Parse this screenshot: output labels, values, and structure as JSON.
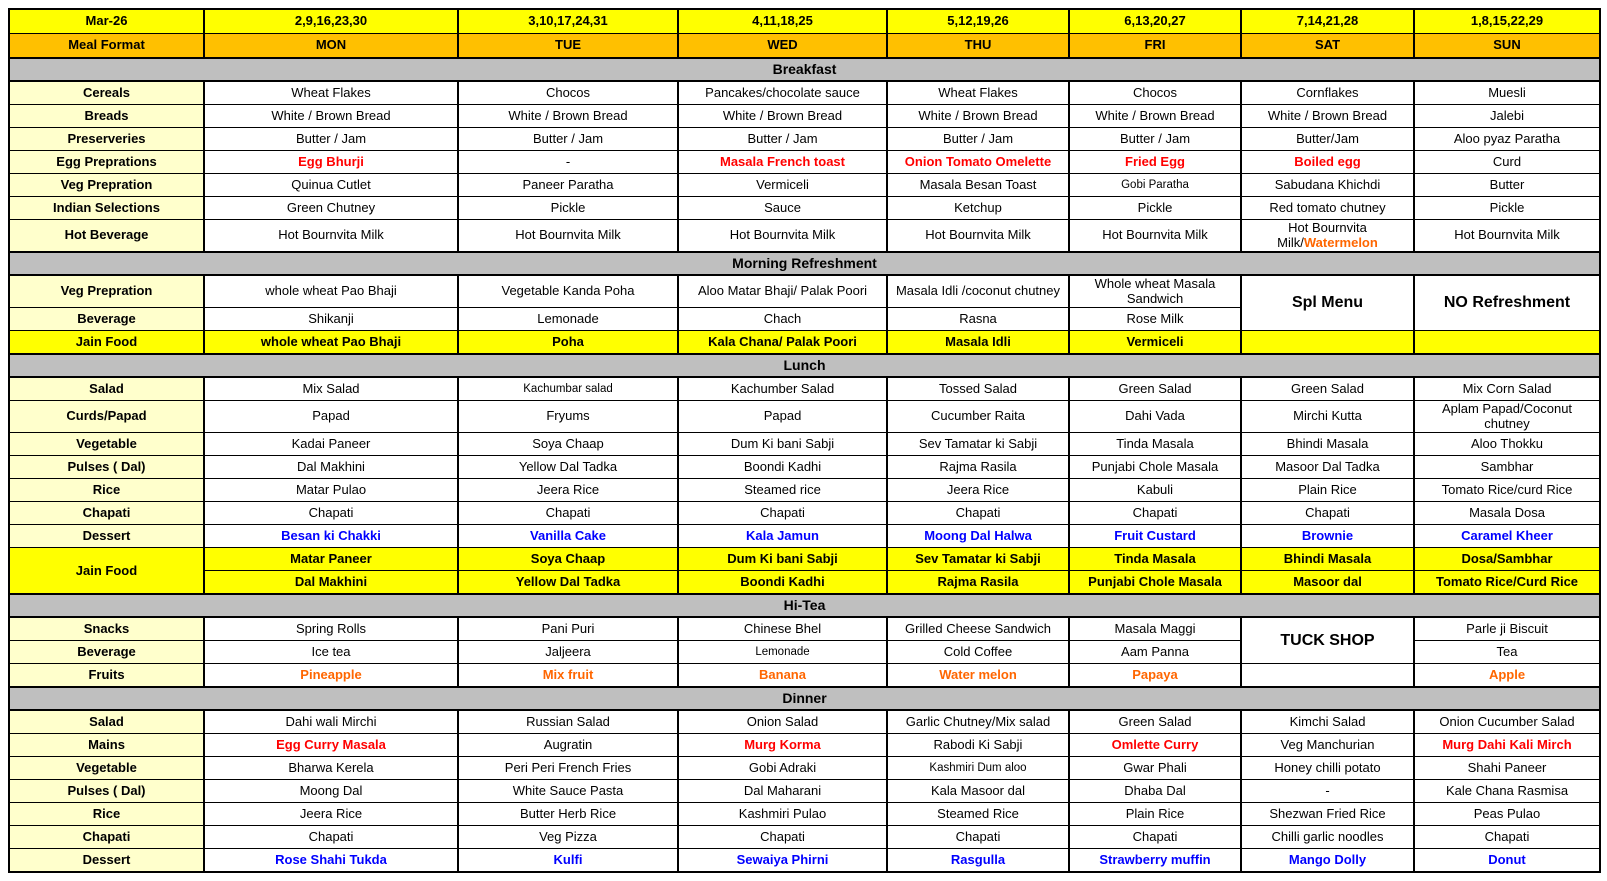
{
  "colors": {
    "header_yellow": "#FFFF00",
    "header_orange": "#FFC000",
    "section_gray": "#BFBFBF",
    "label_cream": "#FFFFCC",
    "jain_yellow": "#FFFF00",
    "egg_red": "#FF0000",
    "dessert_blue": "#0000FF",
    "fruit_orange": "#FF6600"
  },
  "header": {
    "month": "Mar-26",
    "meal_format_label": "Meal Format",
    "dates": [
      "2,9,16,23,30",
      "3,10,17,24,31",
      "4,11,18,25",
      "5,12,19,26",
      "6,13,20,27",
      "7,14,21,28",
      "1,8,15,22,29"
    ],
    "days": [
      "MON",
      "TUE",
      "WED",
      "THU",
      "FRI",
      "SAT",
      "SUN"
    ]
  },
  "sections": [
    {
      "title": "Breakfast",
      "rows": [
        {
          "label": "Cereals",
          "cells": [
            "Wheat Flakes",
            "Chocos",
            "Pancakes/chocolate sauce",
            "Wheat Flakes",
            "Chocos",
            "Cornflakes",
            "Muesli"
          ]
        },
        {
          "label": "Breads",
          "cells": [
            "White / Brown Bread",
            "White / Brown Bread",
            "White / Brown Bread",
            "White / Brown Bread",
            "White / Brown Bread",
            "White / Brown Bread",
            "Jalebi"
          ]
        },
        {
          "label": "Preserveries",
          "cells": [
            "Butter / Jam",
            "Butter / Jam",
            "Butter / Jam",
            "Butter / Jam",
            "Butter / Jam",
            "Butter/Jam",
            "Aloo pyaz Paratha"
          ]
        },
        {
          "label": "Egg Preprations",
          "cells": [
            {
              "text": "Egg Bhurji",
              "color": "red"
            },
            "-",
            {
              "text": "Masala French toast",
              "color": "red"
            },
            {
              "text": "Onion Tomato Omelette",
              "color": "red"
            },
            {
              "text": "Fried Egg",
              "color": "red"
            },
            {
              "text": "Boiled egg",
              "color": "red"
            },
            "Curd"
          ]
        },
        {
          "label": "Veg Prepration",
          "cells": [
            "Quinua Cutlet",
            "Paneer Paratha",
            "Vermiceli",
            "Masala Besan Toast",
            {
              "text": "Gobi Paratha",
              "small": true
            },
            "Sabudana Khichdi",
            "Butter"
          ]
        },
        {
          "label": "Indian Selections",
          "cells": [
            "Green Chutney",
            "Pickle",
            "Sauce",
            "Ketchup",
            "Pickle",
            "Red tomato chutney",
            "Pickle"
          ]
        },
        {
          "label": "Hot Beverage",
          "cells": [
            "Hot Bournvita Milk",
            "Hot Bournvita Milk",
            "Hot Bournvita Milk",
            "Hot Bournvita Milk",
            "Hot Bournvita Milk",
            {
              "parts": [
                {
                  "text": "Hot Bournvita Milk/"
                },
                {
                  "text": "Watermelon",
                  "color": "orange"
                }
              ]
            },
            "Hot Bournvita Milk"
          ]
        }
      ]
    },
    {
      "title": "Morning Refreshment",
      "rows": [
        {
          "label": "Veg Prepration",
          "cells": [
            "whole wheat Pao Bhaji",
            "Vegetable Kanda Poha",
            "Aloo Matar Bhaji/ Palak Poori",
            "Masala Idli /coconut chutney",
            "Whole wheat Masala Sandwich",
            {
              "text": "Spl Menu",
              "big": true,
              "rowspan": 2
            },
            {
              "text": "NO Refreshment",
              "big": true,
              "rowspan": 2
            }
          ]
        },
        {
          "label": "Beverage",
          "cells": [
            "Shikanji",
            "Lemonade",
            "Chach",
            "Rasna",
            "Rose Milk",
            null,
            null
          ]
        },
        {
          "label": "Jain Food",
          "jain": true,
          "cells": [
            "whole wheat Pao Bhaji",
            "Poha",
            "Kala Chana/ Palak Poori",
            "Masala Idli",
            "Vermiceli",
            "",
            ""
          ]
        }
      ]
    },
    {
      "title": "Lunch",
      "rows": [
        {
          "label": "Salad",
          "cells": [
            "Mix Salad",
            {
              "text": "Kachumbar salad",
              "small": true
            },
            "Kachumber Salad",
            "Tossed Salad",
            "Green Salad",
            "Green Salad",
            "Mix Corn Salad"
          ]
        },
        {
          "label": "Curds/Papad",
          "cells": [
            "Papad",
            "Fryums",
            "Papad",
            "Cucumber Raita",
            "Dahi Vada",
            "Mirchi Kutta",
            "Aplam Papad/Coconut chutney"
          ]
        },
        {
          "label": "Vegetable",
          "cells": [
            "Kadai Paneer",
            "Soya Chaap",
            "Dum Ki bani Sabji",
            "Sev Tamatar ki Sabji",
            "Tinda Masala",
            "Bhindi Masala",
            "Aloo Thokku"
          ]
        },
        {
          "label": "Pulses ( Dal)",
          "cells": [
            "Dal Makhini",
            "Yellow Dal Tadka",
            "Boondi Kadhi",
            "Rajma Rasila",
            "Punjabi Chole Masala",
            "Masoor Dal Tadka",
            "Sambhar"
          ]
        },
        {
          "label": "Rice",
          "cells": [
            "Matar Pulao",
            "Jeera Rice",
            "Steamed rice",
            "Jeera Rice",
            "Kabuli",
            "Plain Rice",
            "Tomato Rice/curd Rice"
          ]
        },
        {
          "label": "Chapati",
          "cells": [
            "Chapati",
            "Chapati",
            "Chapati",
            "Chapati",
            "Chapati",
            "Chapati",
            "Masala Dosa"
          ]
        },
        {
          "label": "Dessert",
          "cells": [
            {
              "text": "Besan ki Chakki",
              "color": "blue"
            },
            {
              "text": "Vanilla Cake",
              "color": "blue"
            },
            {
              "text": "Kala Jamun",
              "color": "blue"
            },
            {
              "text": "Moong Dal Halwa",
              "color": "blue"
            },
            {
              "text": "Fruit Custard",
              "color": "blue"
            },
            {
              "text": "Brownie",
              "color": "blue"
            },
            {
              "text": "Caramel Kheer",
              "color": "blue"
            }
          ]
        },
        {
          "label": "Jain Food",
          "label_rowspan": 2,
          "jain": true,
          "cells": [
            "Matar Paneer",
            "Soya Chaap",
            "Dum Ki bani Sabji",
            "Sev Tamatar ki Sabji",
            "Tinda Masala",
            "Bhindi Masala",
            "Dosa/Sambhar"
          ]
        },
        {
          "label": null,
          "jain": true,
          "cells": [
            "Dal Makhini",
            "Yellow Dal Tadka",
            "Boondi Kadhi",
            "Rajma Rasila",
            "Punjabi Chole Masala",
            "Masoor dal",
            "Tomato Rice/Curd Rice"
          ]
        }
      ]
    },
    {
      "title": "Hi-Tea",
      "rows": [
        {
          "label": "Snacks",
          "cells": [
            "Spring Rolls",
            "Pani Puri",
            "Chinese Bhel",
            "Grilled Cheese Sandwich",
            "Masala Maggi",
            {
              "text": "TUCK SHOP",
              "big": true,
              "rowspan": 2
            },
            "Parle ji Biscuit"
          ]
        },
        {
          "label": "Beverage",
          "cells": [
            "Ice tea",
            "Jaljeera",
            {
              "text": "Lemonade",
              "small": true
            },
            "Cold Coffee",
            "Aam Panna",
            null,
            "Tea"
          ]
        },
        {
          "label": "Fruits",
          "cells": [
            {
              "text": "Pineapple",
              "color": "orange"
            },
            {
              "text": "Mix fruit",
              "color": "orange"
            },
            {
              "text": "Banana",
              "color": "orange"
            },
            {
              "text": "Water melon",
              "color": "orange"
            },
            {
              "text": "Papaya",
              "color": "orange"
            },
            "",
            {
              "text": "Apple",
              "color": "orange"
            }
          ]
        }
      ]
    },
    {
      "title": "Dinner",
      "rows": [
        {
          "label": "Salad",
          "cells": [
            "Dahi wali Mirchi",
            "Russian Salad",
            "Onion Salad",
            "Garlic Chutney/Mix salad",
            "Green Salad",
            "Kimchi Salad",
            "Onion Cucumber Salad"
          ]
        },
        {
          "label": "Mains",
          "cells": [
            {
              "text": "Egg Curry Masala",
              "color": "red"
            },
            "Augratin",
            {
              "text": "Murg Korma",
              "color": "red"
            },
            "Rabodi Ki Sabji",
            {
              "text": "Omlette Curry",
              "color": "red"
            },
            "Veg Manchurian",
            {
              "text": "Murg Dahi Kali Mirch",
              "color": "red"
            }
          ]
        },
        {
          "label": "Vegetable",
          "cells": [
            "Bharwa Kerela",
            "Peri Peri French Fries",
            "Gobi Adraki",
            {
              "text": "Kashmiri Dum aloo",
              "small": true
            },
            "Gwar Phali",
            "Honey chilli potato",
            "Shahi Paneer"
          ]
        },
        {
          "label": "Pulses ( Dal)",
          "cells": [
            "Moong Dal",
            "White Sauce Pasta",
            "Dal Maharani",
            "Kala Masoor dal",
            "Dhaba Dal",
            "-",
            "Kale Chana Rasmisa"
          ]
        },
        {
          "label": "Rice",
          "cells": [
            "Jeera Rice",
            "Butter Herb Rice",
            "Kashmiri Pulao",
            "Steamed Rice",
            "Plain Rice",
            "Shezwan Fried Rice",
            "Peas Pulao"
          ]
        },
        {
          "label": "Chapati",
          "cells": [
            "Chapati",
            "Veg Pizza",
            "Chapati",
            "Chapati",
            "Chapati",
            "Chilli garlic noodles",
            "Chapati"
          ]
        },
        {
          "label": "Dessert",
          "cells": [
            {
              "text": "Rose Shahi Tukda",
              "color": "blue"
            },
            {
              "text": "Kulfi",
              "color": "blue"
            },
            {
              "text": "Sewaiya Phirni",
              "color": "blue"
            },
            {
              "text": "Rasgulla",
              "color": "blue"
            },
            {
              "text": "Strawberry muffin",
              "color": "blue"
            },
            {
              "text": "Mango Dolly",
              "color": "blue"
            },
            {
              "text": "Donut",
              "color": "blue"
            }
          ]
        }
      ]
    }
  ]
}
